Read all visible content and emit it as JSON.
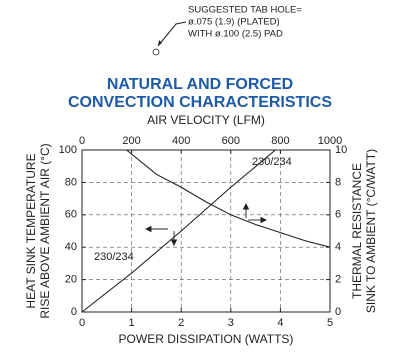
{
  "chart_data": {
    "type": "line",
    "annotation": [
      "SUGGESTED TAB HOLE=",
      "ø.075 (1.9) (PLATED)",
      "WITH ø.100 (2.5) PAD"
    ],
    "title": [
      "NATURAL AND FORCED",
      "CONVECTION CHARACTERISTICS"
    ],
    "x2_label": "AIR VELOCITY (LFM)",
    "x_label": "POWER DISSIPATION (WATTS)",
    "y_label": [
      "HEAT SINK TEMPERATURE",
      "RISE ABOVE AMBIENT AIR (°C)"
    ],
    "y2_label": [
      "THERMAL RESISTANCE",
      "SINK TO AMBIENT (°C/WATT)"
    ],
    "xlim": [
      0,
      5
    ],
    "xticks": [
      0,
      1,
      2,
      3,
      4,
      5
    ],
    "x2lim": [
      0,
      1000
    ],
    "x2ticks": [
      0,
      200,
      400,
      600,
      800,
      1000
    ],
    "ylim": [
      0,
      100
    ],
    "yticks": [
      0,
      20,
      40,
      60,
      80,
      100
    ],
    "y2lim": [
      0,
      10
    ],
    "y2ticks": [
      0,
      2,
      4,
      6,
      8,
      10
    ],
    "grid": true,
    "series": [
      {
        "name": "230/234",
        "color": "#222222",
        "x": [
          0,
          1,
          2,
          3,
          3.9
        ],
        "values": [
          0,
          24,
          50,
          77,
          100
        ]
      },
      {
        "name": "230/234",
        "color": "#222222",
        "axis": "y2",
        "xaxis": "x2",
        "x": [
          180,
          300,
          400,
          500,
          600,
          700,
          800,
          900,
          1000
        ],
        "values": [
          10,
          8.5,
          7.7,
          6.8,
          6.0,
          5.4,
          4.9,
          4.4,
          4.0
        ]
      }
    ]
  }
}
